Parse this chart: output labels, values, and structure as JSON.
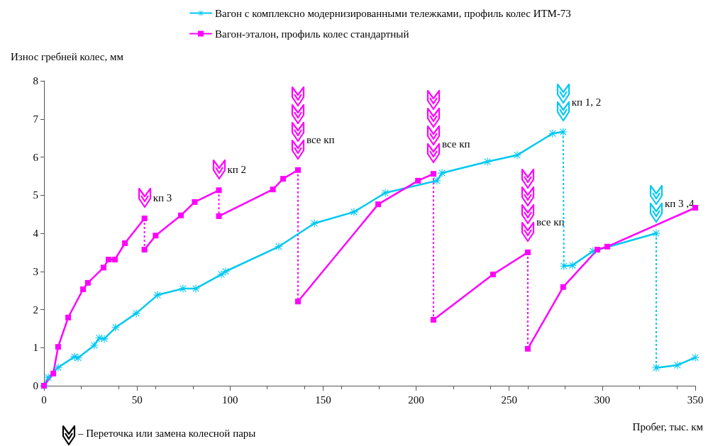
{
  "chart_data": {
    "type": "line",
    "xlabel": "Пробег, тыс. км",
    "ylabel": "Износ гребней колес, мм",
    "xlim": [
      0,
      350
    ],
    "xticks": [
      0,
      50,
      100,
      150,
      200,
      250,
      300,
      350
    ],
    "ylim": [
      0,
      8
    ],
    "yticks": [
      0,
      1,
      2,
      3,
      4,
      5,
      6,
      7,
      8
    ],
    "grid": false,
    "legend": "top",
    "line_style": "solid",
    "series": [
      {
        "name": "Вагон с комплексно модернизированными тележками, профиль колес ИТМ-73",
        "color": "#00c8f0",
        "marker": "star",
        "x": [
          0,
          2.3,
          7.6,
          16.4,
          18.3,
          27,
          29.7,
          32.4,
          38.5,
          49.6,
          61,
          74.7,
          81.6,
          95.3,
          97.6,
          126.2,
          145.3,
          166.6,
          183.4,
          211.2,
          213.9,
          238.3,
          254.3,
          273.4,
          279
        ],
        "values": [
          0,
          0.22,
          0.48,
          0.76,
          0.73,
          1.06,
          1.25,
          1.23,
          1.53,
          1.9,
          2.38,
          2.55,
          2.55,
          2.92,
          3.0,
          3.65,
          4.26,
          4.56,
          5.06,
          5.38,
          5.58,
          5.88,
          6.05,
          6.62,
          6.66
        ]
      },
      {
        "color": "#00c8f0",
        "marker": "star",
        "x": [
          279.4,
          284,
          295,
          329
        ],
        "values": [
          3.14,
          3.16,
          3.53,
          4.0
        ]
      },
      {
        "color": "#00c8f0",
        "marker": "star",
        "x": [
          329,
          340.4,
          350
        ],
        "values": [
          0.47,
          0.54,
          0.74
        ]
      },
      {
        "name": "Вагон-эталон, профиль колес стандартный",
        "color": "#ff00ff",
        "marker": "square",
        "x": [
          0,
          5,
          7.6,
          13,
          21,
          23.6,
          32,
          34.7,
          38.1,
          43.5,
          54
        ],
        "values": [
          0,
          0.32,
          1.02,
          1.79,
          2.53,
          2.7,
          3.1,
          3.31,
          3.31,
          3.74,
          4.39
        ]
      },
      {
        "color": "#ff00ff",
        "marker": "square",
        "x": [
          54,
          60,
          73.6,
          81,
          94
        ],
        "values": [
          3.57,
          3.94,
          4.47,
          4.82,
          5.13
        ]
      },
      {
        "color": "#ff00ff",
        "marker": "square",
        "x": [
          94,
          123,
          128.5,
          136.5
        ],
        "values": [
          4.45,
          5.15,
          5.43,
          5.66
        ]
      },
      {
        "color": "#ff00ff",
        "marker": "square",
        "x": [
          136.5,
          179.6,
          201,
          209.3
        ],
        "values": [
          2.21,
          4.76,
          5.38,
          5.56
        ]
      },
      {
        "color": "#ff00ff",
        "marker": "square",
        "x": [
          209.3,
          241.3,
          260
        ],
        "values": [
          1.73,
          2.92,
          3.5
        ]
      },
      {
        "color": "#ff00ff",
        "marker": "square",
        "x": [
          260,
          279,
          297.4,
          302.7,
          350
        ],
        "values": [
          0.97,
          2.59,
          3.57,
          3.65,
          4.67
        ]
      },
      {
        "color": "#ff00ff",
        "marker": "none",
        "line_style": "dotted",
        "x": [
          54,
          54
        ],
        "values": [
          4.39,
          3.57
        ]
      },
      {
        "color": "#ff00ff",
        "marker": "none",
        "line_style": "dotted",
        "x": [
          94,
          94
        ],
        "values": [
          5.13,
          4.45
        ]
      },
      {
        "color": "#ff00ff",
        "marker": "none",
        "line_style": "dotted",
        "x": [
          136.5,
          136.5
        ],
        "values": [
          5.66,
          2.21
        ]
      },
      {
        "color": "#ff00ff",
        "marker": "none",
        "line_style": "dotted",
        "x": [
          209.3,
          209.3
        ],
        "values": [
          5.56,
          1.73
        ]
      },
      {
        "color": "#ff00ff",
        "marker": "none",
        "line_style": "dotted",
        "x": [
          260,
          260
        ],
        "values": [
          3.5,
          0.97
        ]
      },
      {
        "color": "#00c8f0",
        "marker": "none",
        "line_style": "dotted",
        "x": [
          279,
          279.4
        ],
        "values": [
          6.66,
          3.14
        ]
      },
      {
        "color": "#00c8f0",
        "marker": "none",
        "line_style": "dotted",
        "x": [
          329,
          329
        ],
        "values": [
          4.0,
          0.47
        ]
      }
    ],
    "annotations": [
      {
        "text": "кп 3",
        "x": 54,
        "y": 4.39
      },
      {
        "text": "кп 2",
        "x": 94,
        "y": 5.13
      },
      {
        "text": "все кп",
        "x": 136.5,
        "y": 5.66
      },
      {
        "text": "все кп",
        "x": 209.3,
        "y": 5.56
      },
      {
        "text": "все кп",
        "x": 260,
        "y": 3.5
      },
      {
        "text": "кп 1, 2",
        "x": 279,
        "y": 6.66
      },
      {
        "text": "кп 3 ,4",
        "x": 329,
        "y": 4.0
      },
      "– Переточка или замена колесной пары"
    ]
  }
}
